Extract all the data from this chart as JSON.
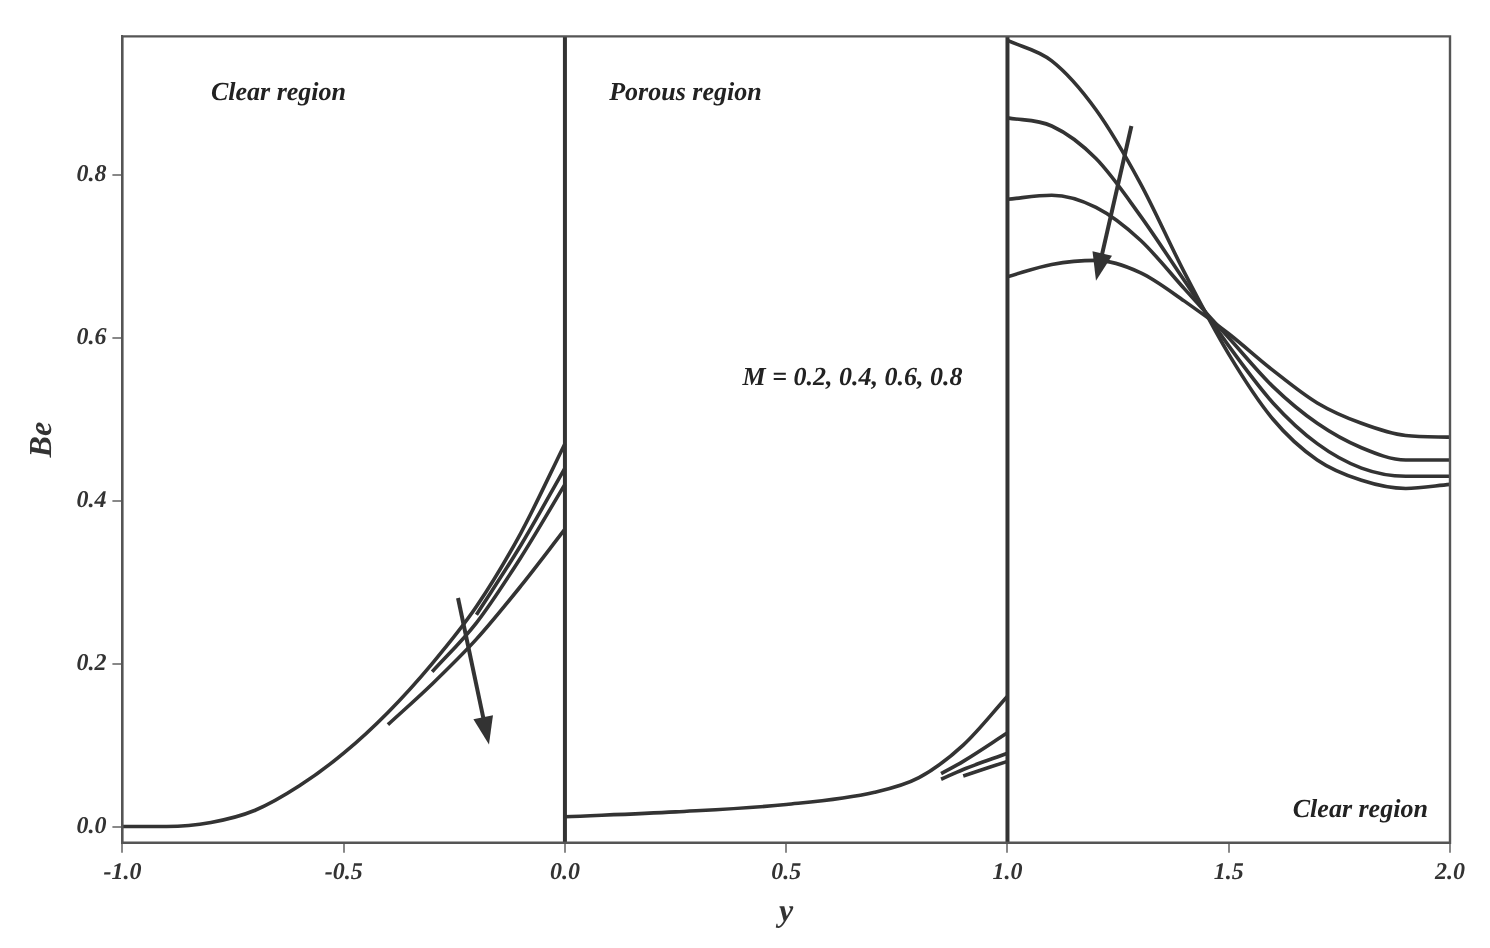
{
  "chart_data": {
    "type": "line",
    "xlabel": "y",
    "ylabel": "Be",
    "xlim": [
      -1,
      2
    ],
    "ylim": [
      -0.02,
      0.97
    ],
    "xticks": [
      {
        "value": -1,
        "label": "-1.0"
      },
      -0.5,
      {
        "value": 0,
        "label": "0.0"
      },
      0.5,
      {
        "value": 1,
        "label": "1.0"
      },
      1.5,
      {
        "value": 2,
        "label": "2.0"
      }
    ],
    "yticks": [
      {
        "value": 0,
        "label": "0.0"
      },
      0.2,
      0.4,
      0.6,
      0.8
    ],
    "grid": false,
    "legend": false,
    "marker": "none",
    "line_style": "solid",
    "ref_lines": [
      {
        "axis": "x",
        "value": 0,
        "color": "#333333"
      },
      {
        "axis": "x",
        "value": 1,
        "color": "#333333"
      }
    ],
    "annotations": [
      "Clear region",
      "Porous region",
      "M = 0.2, 0.4, 0.6, 0.8",
      "Clear region"
    ],
    "series": [
      {
        "color": "#333333",
        "x": [
          -1,
          -0.9,
          -0.8,
          -0.7,
          -0.6,
          -0.5,
          -0.4,
          -0.3,
          -0.2,
          -0.1,
          0
        ],
        "values": [
          0,
          0,
          0.005,
          0.02,
          0.05,
          0.09,
          0.14,
          0.2,
          0.27,
          0.36,
          0.47
        ]
      },
      {
        "color": "#333333",
        "x": [
          -0.2,
          -0.1,
          0
        ],
        "values": [
          0.26,
          0.345,
          0.44
        ]
      },
      {
        "color": "#333333",
        "x": [
          -0.3,
          -0.2,
          -0.1,
          0
        ],
        "values": [
          0.19,
          0.25,
          0.33,
          0.42
        ]
      },
      {
        "color": "#333333",
        "x": [
          -0.4,
          -0.3,
          -0.2,
          -0.1,
          0
        ],
        "values": [
          0.125,
          0.175,
          0.23,
          0.295,
          0.365
        ]
      },
      {
        "color": "#333333",
        "x": [
          0,
          0.25,
          0.5,
          0.7,
          0.8,
          0.9,
          1
        ],
        "values": [
          0.012,
          0.018,
          0.027,
          0.042,
          0.06,
          0.1,
          0.16
        ]
      },
      {
        "color": "#333333",
        "x": [
          0.85,
          0.9,
          1
        ],
        "values": [
          0.065,
          0.08,
          0.115
        ]
      },
      {
        "color": "#333333",
        "x": [
          0.85,
          0.9,
          1
        ],
        "values": [
          0.058,
          0.07,
          0.09
        ]
      },
      {
        "color": "#333333",
        "x": [
          0.9,
          1
        ],
        "values": [
          0.062,
          0.08
        ]
      },
      {
        "color": "#333333",
        "x": [
          1,
          1.1,
          1.2,
          1.3,
          1.4,
          1.5,
          1.6,
          1.7,
          1.8,
          1.9,
          2
        ],
        "values": [
          0.965,
          0.94,
          0.88,
          0.79,
          0.68,
          0.58,
          0.5,
          0.45,
          0.425,
          0.415,
          0.42
        ]
      },
      {
        "color": "#333333",
        "x": [
          1,
          1.1,
          1.2,
          1.3,
          1.4,
          1.5,
          1.6,
          1.7,
          1.8,
          1.9,
          2
        ],
        "values": [
          0.87,
          0.86,
          0.82,
          0.75,
          0.67,
          0.59,
          0.52,
          0.47,
          0.44,
          0.43,
          0.43
        ]
      },
      {
        "color": "#333333",
        "x": [
          1,
          1.1,
          1.2,
          1.3,
          1.4,
          1.5,
          1.6,
          1.7,
          1.8,
          1.9,
          2
        ],
        "values": [
          0.77,
          0.775,
          0.76,
          0.72,
          0.66,
          0.6,
          0.54,
          0.495,
          0.465,
          0.45,
          0.45
        ]
      },
      {
        "color": "#333333",
        "x": [
          1,
          1.1,
          1.2,
          1.3,
          1.4,
          1.5,
          1.6,
          1.7,
          1.8,
          1.9,
          2
        ],
        "values": [
          0.675,
          0.69,
          0.695,
          0.68,
          0.645,
          0.605,
          0.56,
          0.52,
          0.495,
          0.48,
          0.478
        ]
      }
    ]
  }
}
